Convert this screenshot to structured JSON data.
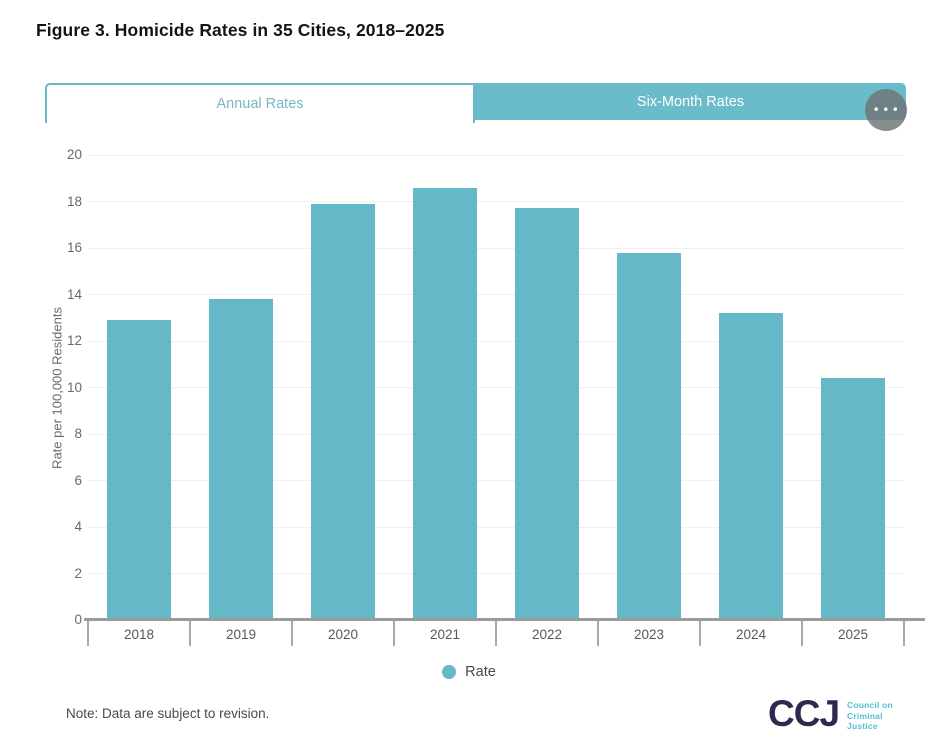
{
  "page": {
    "title": "Figure 3. Homicide Rates in 35 Cities, 2018–2025"
  },
  "tabs": [
    {
      "label": "Annual Rates",
      "active": true
    },
    {
      "label": "Six-Month Rates",
      "active": false
    }
  ],
  "menu_button": {
    "icon_name": "ellipsis-icon",
    "icon_glyph": "•••"
  },
  "chart_data": {
    "type": "bar",
    "categories": [
      "2018",
      "2019",
      "2020",
      "2021",
      "2022",
      "2023",
      "2024",
      "2025"
    ],
    "series": [
      {
        "name": "Rate",
        "values": [
          12.9,
          13.8,
          17.9,
          18.6,
          17.7,
          15.8,
          13.2,
          10.4
        ]
      }
    ],
    "title": "",
    "xlabel": "",
    "ylabel": "Rate per 100,000 Residents",
    "ylim": [
      0,
      20
    ],
    "ytick_step": 2,
    "grid": true,
    "legend": {
      "position": "bottom",
      "entries": [
        {
          "label": "Rate",
          "color": "#65b8c7"
        }
      ]
    },
    "bar_color": "#65b8c7"
  },
  "note": "Note: Data are subject to revision.",
  "logo": {
    "ccj": "CCJ",
    "lines": [
      "Council on",
      "Criminal",
      "Justice"
    ]
  },
  "colors": {
    "accent_teal": "#65b8c7",
    "tab_teal": "#6bbcca",
    "tab_border": "#6cb9c9",
    "tab_active_text": "#79b6c5",
    "logo_navy": "#2e2a4d",
    "logo_teal": "#54bfd4",
    "gridline": "#efefef",
    "axis_line": "#9b9b9b",
    "tick_text": "#696969"
  }
}
